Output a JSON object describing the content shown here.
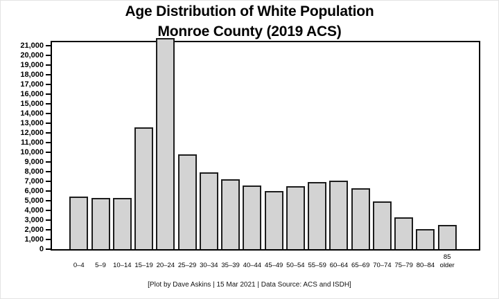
{
  "title": {
    "line1": "Age Distribution of White Population",
    "line2": "Monroe County (2019 ACS)"
  },
  "footer": "[Plot by Dave Askins | 15 Mar 2021 | Data Source: ACS and ISDH]",
  "chart_data": {
    "type": "bar",
    "title": "Age Distribution of White Population — Monroe County (2019 ACS)",
    "categories": [
      "0–4",
      "5–9",
      "10–14",
      "15–19",
      "20–24",
      "25–29",
      "30–34",
      "35–39",
      "40–44",
      "45–49",
      "50–54",
      "55–59",
      "60–64",
      "65–69",
      "70–74",
      "75–79",
      "80–84",
      "85 older"
    ],
    "categories_display": [
      "0–4",
      "5–9",
      "10–14",
      "15–19",
      "20–24",
      "25–29",
      "30–34",
      "35–39",
      "40–44",
      "45–49",
      "50–54",
      "55–59",
      "60–64",
      "65–69",
      "70–74",
      "75–79",
      "80–84",
      "85\nolder"
    ],
    "values": [
      5400,
      5300,
      5300,
      12600,
      21800,
      9800,
      7900,
      7200,
      6600,
      6000,
      6500,
      6900,
      7100,
      6300,
      4900,
      3300,
      2100,
      2500
    ],
    "clipped_categories": [
      "20–24"
    ],
    "notes": "The 20–24 bar exceeds the visible y-axis range and is clipped at the top of the plot frame.",
    "xlabel": "",
    "ylabel": "",
    "ylim": [
      0,
      21000
    ],
    "y_ticks": [
      0,
      1000,
      2000,
      3000,
      4000,
      5000,
      6000,
      7000,
      8000,
      9000,
      10000,
      11000,
      12000,
      13000,
      14000,
      15000,
      16000,
      17000,
      18000,
      19000,
      20000,
      21000
    ],
    "y_tick_labels": [
      "0",
      "1,000",
      "2,000",
      "3,000",
      "4,000",
      "5,000",
      "6,000",
      "7,000",
      "8,000",
      "9,000",
      "10,000",
      "11,000",
      "12,000",
      "13,000",
      "14,000",
      "15,000",
      "16,000",
      "17,000",
      "18,000",
      "19,000",
      "20,000",
      "21,000"
    ],
    "grid": false,
    "legend": false,
    "bar_fill": "#d3d3d3",
    "bar_border": "#1c1c1c",
    "axis_color": "#000000"
  }
}
